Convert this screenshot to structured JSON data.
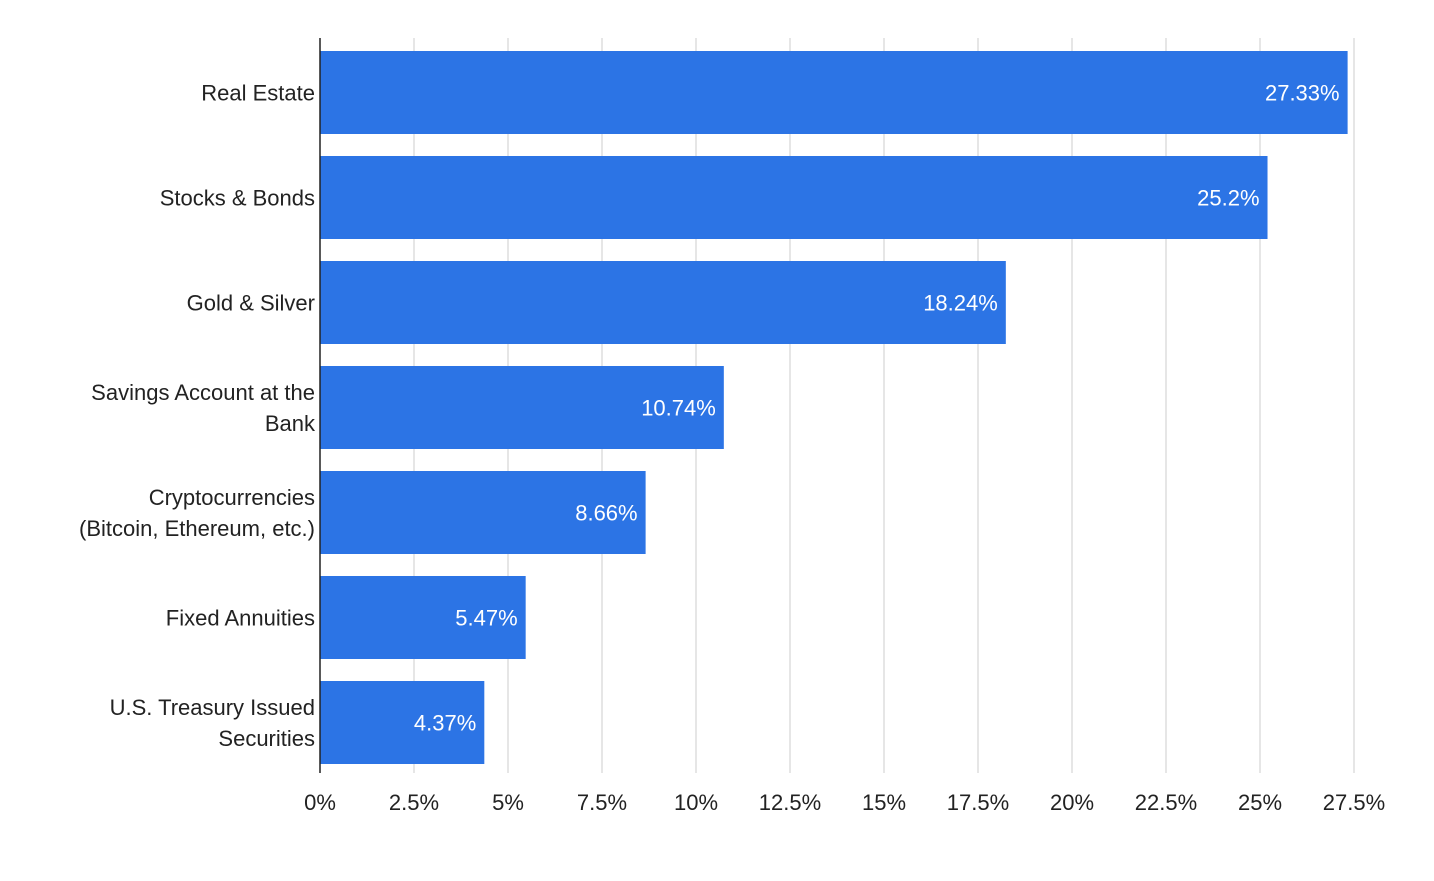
{
  "chart_data": {
    "type": "bar",
    "orientation": "horizontal",
    "categories": [
      [
        "Real Estate"
      ],
      [
        "Stocks & Bonds"
      ],
      [
        "Gold & Silver"
      ],
      [
        "Savings Account at the",
        "Bank"
      ],
      [
        "Cryptocurrencies",
        "(Bitcoin, Ethereum, etc.)"
      ],
      [
        "Fixed Annuities"
      ],
      [
        "U.S. Treasury Issued",
        "Securities"
      ]
    ],
    "values": [
      27.33,
      25.2,
      18.24,
      10.74,
      8.66,
      5.47,
      4.37
    ],
    "data_labels": [
      "27.33%",
      "25.2%",
      "18.24%",
      "10.74%",
      "8.66%",
      "5.47%",
      "4.37%"
    ],
    "x_ticks": [
      0,
      2.5,
      5,
      7.5,
      10,
      12.5,
      15,
      17.5,
      20,
      22.5,
      25,
      27.5
    ],
    "x_tick_labels": [
      "0%",
      "2.5%",
      "5%",
      "7.5%",
      "10%",
      "12.5%",
      "15%",
      "17.5%",
      "20%",
      "22.5%",
      "25%",
      "27.5%"
    ],
    "xlim": [
      0,
      27.5
    ],
    "title": "",
    "xlabel": "",
    "ylabel": "",
    "grid": "vertical",
    "legend": "none",
    "bar_color": "#2c74e5"
  }
}
